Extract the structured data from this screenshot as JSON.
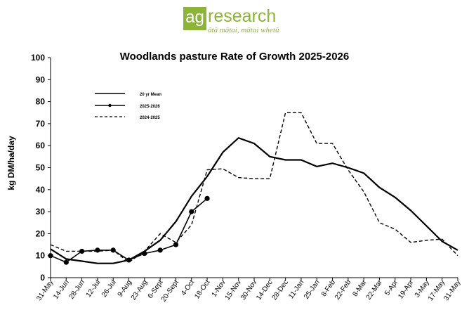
{
  "logo": {
    "box_text": "ag",
    "word": "research",
    "tagline": "ātā mātai, mātai whetū",
    "color": "#8db33a"
  },
  "chart_data": {
    "type": "line",
    "title": "Woodlands pasture Rate of Growth 2025-2026",
    "xlabel": "",
    "ylabel": "kg DM/ha/day",
    "ylim": [
      0,
      100
    ],
    "yticks": [
      0,
      10,
      20,
      30,
      40,
      50,
      60,
      70,
      80,
      90,
      100
    ],
    "grid": false,
    "legend_position": "top-left",
    "categories": [
      "31-May",
      "14-Jun",
      "28-Jun",
      "12-Jul",
      "26-Jul",
      "9-Aug",
      "23-Aug",
      "6-Sept",
      "20-Sept",
      "4-Oct",
      "18-Oct",
      "1-Nov",
      "15-Nov",
      "30-Nov",
      "14-Dec",
      "28-Dec",
      "11-Jan",
      "25-Jan",
      "8-Feb",
      "22-Feb",
      "8-Mar",
      "22-Mar",
      "5-Apr",
      "19-Apr",
      "3-May",
      "17-May",
      "31-May"
    ],
    "series": [
      {
        "name": "20 yr Mean",
        "style": "solid",
        "markers": false,
        "color": "#000000",
        "values": [
          13,
          8.5,
          7.5,
          6.5,
          6.5,
          8,
          12,
          17,
          25.5,
          37,
          46,
          57,
          63.5,
          61,
          55,
          53.5,
          53.5,
          50.5,
          52,
          50,
          47.5,
          41,
          36.5,
          30.5,
          23.5,
          16.5,
          12.5
        ]
      },
      {
        "name": "2025-2026",
        "style": "solid",
        "markers": true,
        "color": "#000000",
        "values": [
          10,
          7,
          12,
          12.5,
          12.5,
          8,
          11,
          12.5,
          15,
          30,
          36,
          null,
          null,
          null,
          null,
          null,
          null,
          null,
          null,
          null,
          null,
          null,
          null,
          null,
          null,
          null,
          null
        ]
      },
      {
        "name": "2024-2025",
        "style": "dashed",
        "markers": false,
        "color": "#000000",
        "values": [
          15,
          12,
          12,
          12,
          12.5,
          7,
          12,
          20,
          16,
          24,
          49,
          49.5,
          45.5,
          45,
          45,
          75,
          75,
          61,
          61,
          49,
          39,
          25,
          22,
          16,
          17,
          17.5,
          10
        ]
      }
    ]
  }
}
